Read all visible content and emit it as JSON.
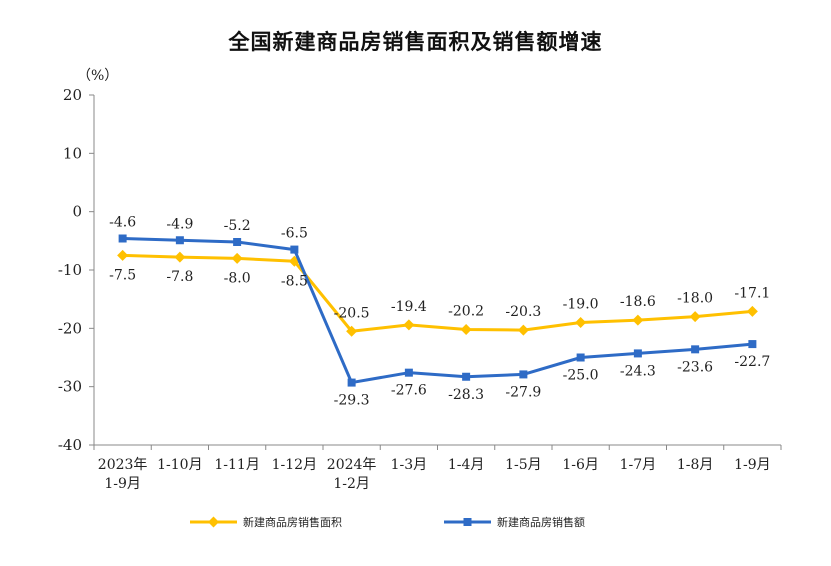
{
  "chart_data": {
    "type": "line",
    "title": "全国新建商品房销售面积及销售额增速",
    "ylabel": "（%）",
    "ylim": [
      -40,
      20
    ],
    "yticks": [
      "20",
      "10",
      "0",
      "-10",
      "-20",
      "-30",
      "-40"
    ],
    "categories": [
      [
        "2023年",
        "1-9月"
      ],
      [
        "1-10月"
      ],
      [
        "1-11月"
      ],
      [
        "1-12月"
      ],
      [
        "2024年",
        "1-2月"
      ],
      [
        "1-3月"
      ],
      [
        "1-4月"
      ],
      [
        "1-5月"
      ],
      [
        "1-6月"
      ],
      [
        "1-7月"
      ],
      [
        "1-8月"
      ],
      [
        "1-9月"
      ]
    ],
    "series": [
      {
        "name": "新建商品房销售面积",
        "color": "#FFC000",
        "marker": "diamond",
        "values": [
          -7.5,
          -7.8,
          -8.0,
          -8.5,
          -20.5,
          -19.4,
          -20.2,
          -20.3,
          -19.0,
          -18.6,
          -18.0,
          -17.1
        ],
        "labels": [
          "-7.5",
          "-7.8",
          "-8.0",
          "-8.5",
          "-20.5",
          "-19.4",
          "-20.2",
          "-20.3",
          "-19.0",
          "-18.6",
          "-18.0",
          "-17.1"
        ]
      },
      {
        "name": "新建商品房销售额",
        "color": "#2E6BC6",
        "marker": "square",
        "values": [
          -4.6,
          -4.9,
          -5.2,
          -6.5,
          -29.3,
          -27.6,
          -28.3,
          -27.9,
          -25.0,
          -24.3,
          -23.6,
          -22.7
        ],
        "labels": [
          "-4.6",
          "-4.9",
          "-5.2",
          "-6.5",
          "-29.3",
          "-27.6",
          "-28.3",
          "-27.9",
          "-25.0",
          "-24.3",
          "-23.6",
          "-22.7"
        ]
      }
    ],
    "legend": "bottom"
  }
}
